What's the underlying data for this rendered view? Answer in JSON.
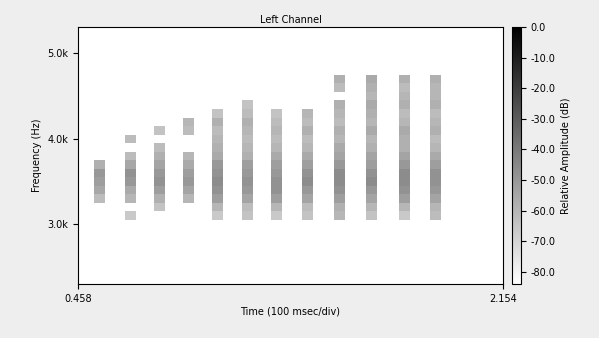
{
  "chart_data": {
    "type": "heatmap",
    "title": "Left Channel",
    "x_label": "Time (100 msec/div)",
    "y_label": "Frequency (Hz)",
    "x": [
      0.546,
      0.668,
      0.782,
      0.9,
      1.015,
      1.136,
      1.251,
      1.372,
      1.501,
      1.63,
      1.76,
      1.885
    ],
    "y": [
      3100,
      3200,
      3300,
      3400,
      3500,
      3600,
      3700,
      3800,
      3900,
      4000,
      4100,
      4200,
      4300,
      4400,
      4500,
      4600,
      4700
    ],
    "cells": [
      [
        null,
        null,
        -62,
        -55,
        -52,
        -50,
        -58,
        null,
        null,
        null,
        null,
        null,
        null,
        null,
        null,
        null,
        null
      ],
      [
        -66,
        null,
        -60,
        -56,
        -50,
        -48,
        -55,
        -62,
        null,
        -62,
        null,
        null,
        null,
        null,
        null,
        null,
        null
      ],
      [
        null,
        -64,
        -58,
        -52,
        -48,
        -50,
        -54,
        -58,
        -62,
        null,
        -64,
        null,
        null,
        null,
        null,
        null,
        null
      ],
      [
        null,
        null,
        -60,
        -54,
        -50,
        -52,
        -56,
        -60,
        null,
        null,
        -62,
        -60,
        null,
        null,
        null,
        null,
        null
      ],
      [
        -66,
        -60,
        -52,
        -48,
        -46,
        -48,
        -50,
        -56,
        -58,
        -60,
        -62,
        -58,
        -64,
        null,
        null,
        null,
        null
      ],
      [
        -64,
        -62,
        -54,
        -50,
        -48,
        -50,
        -52,
        -58,
        -60,
        -62,
        -60,
        -58,
        -62,
        -64,
        null,
        null,
        null
      ],
      [
        -66,
        -60,
        -52,
        -48,
        -48,
        -50,
        -52,
        -56,
        -60,
        -62,
        -60,
        -62,
        -64,
        null,
        null,
        null,
        null
      ],
      [
        -64,
        -62,
        -54,
        -50,
        -46,
        -48,
        -52,
        -56,
        -60,
        -62,
        -58,
        -62,
        -60,
        null,
        null,
        null,
        null
      ],
      [
        -60,
        -58,
        -52,
        -48,
        -46,
        -46,
        -50,
        -54,
        -56,
        -60,
        -58,
        -62,
        -60,
        -58,
        null,
        -62,
        -58
      ],
      [
        -64,
        -60,
        -54,
        -50,
        -46,
        -48,
        -52,
        -54,
        -58,
        -60,
        -56,
        -60,
        -58,
        -56,
        -60,
        -58,
        -56
      ],
      [
        -66,
        -60,
        -52,
        -48,
        -46,
        -46,
        -50,
        -54,
        -58,
        -58,
        -56,
        -60,
        -62,
        -58,
        -60,
        -62,
        -58
      ],
      [
        -62,
        -60,
        -54,
        -50,
        -48,
        -48,
        -52,
        -56,
        -60,
        -62,
        -58,
        -60,
        -62,
        -58,
        -60,
        -60,
        -58
      ]
    ],
    "xlim": [
      0.458,
      2.154
    ],
    "xticks": [
      0.458,
      2.154
    ],
    "ylim": [
      2300,
      5310
    ],
    "yticks": [
      {
        "value": 3000,
        "label": "3.0k"
      },
      {
        "value": 4000,
        "label": "4.0k"
      },
      {
        "value": 5000,
        "label": "5.0k"
      }
    ],
    "grid": false,
    "colorbar_label": "Relative Amplitude (dB)",
    "colorbar_range": [
      -84,
      0
    ],
    "colorbar_ticks": [
      {
        "value": 0,
        "label": "0.0"
      },
      {
        "value": -10,
        "label": "-10.0"
      },
      {
        "value": -20,
        "label": "-20.0"
      },
      {
        "value": -30,
        "label": "-30.0"
      },
      {
        "value": -40,
        "label": "-40.0"
      },
      {
        "value": -50,
        "label": "-50.0"
      },
      {
        "value": -60,
        "label": "-60.0"
      },
      {
        "value": -70,
        "label": "-70.0"
      },
      {
        "value": -80,
        "label": "-80.0"
      }
    ]
  }
}
